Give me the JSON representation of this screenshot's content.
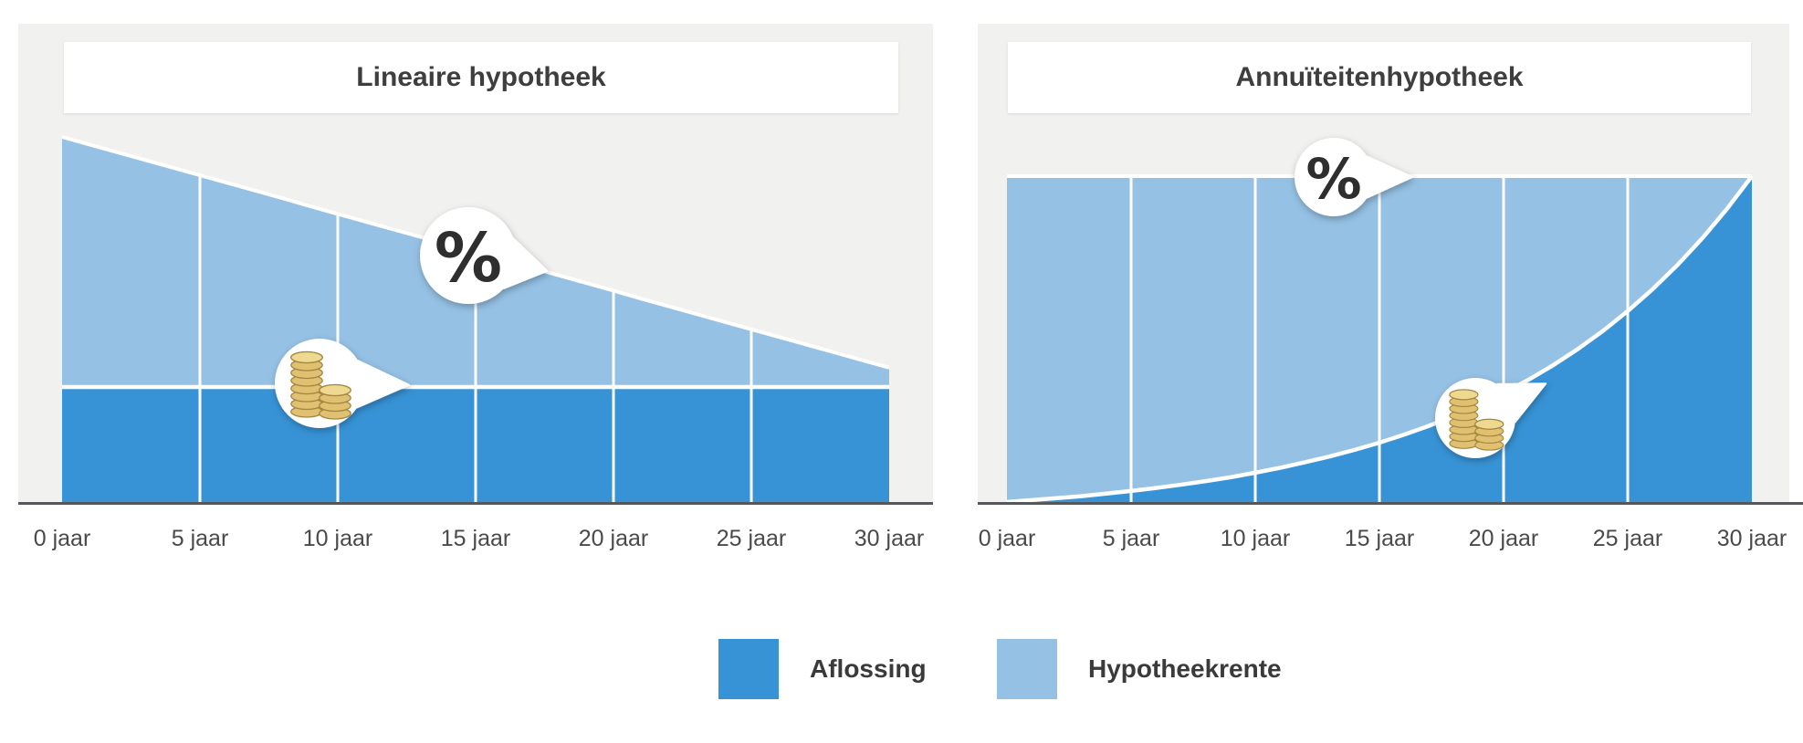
{
  "colors": {
    "aflossing": "#3793d6",
    "hypotheekrente": "#95c1e4",
    "panel_background": "#f1f1f0",
    "axis_line": "#55575a",
    "bubble_fill": "#ffffff",
    "coin_gold": "#dfc171"
  },
  "chart_data": [
    {
      "type": "area",
      "stacked": true,
      "title": "Lineaire hypotheek",
      "xlabel": "",
      "ylabel": "",
      "x": [
        0,
        1,
        2,
        3,
        4,
        5,
        6,
        7,
        8,
        9,
        10,
        11,
        12,
        13,
        14,
        15,
        16,
        17,
        18,
        19,
        20,
        21,
        22,
        23,
        24,
        25,
        26,
        27,
        28,
        29,
        30
      ],
      "tick_labels": [
        "0 jaar",
        "5 jaar",
        "10 jaar",
        "15 jaar",
        "20 jaar",
        "25 jaar",
        "30 jaar"
      ],
      "ylim": [
        0,
        100
      ],
      "grid": "vertical-white-lines",
      "legend_position": "bottom",
      "series": [
        {
          "name": "Aflossing",
          "color": "#3793d6",
          "values": [
            31.5,
            31.5,
            31.5,
            31.5,
            31.5,
            31.5,
            31.5,
            31.5,
            31.5,
            31.5,
            31.5,
            31.5,
            31.5,
            31.5,
            31.5,
            31.5,
            31.5,
            31.5,
            31.5,
            31.5,
            31.5,
            31.5,
            31.5,
            31.5,
            31.5,
            31.5,
            31.5,
            31.5,
            31.5,
            31.5,
            31.5
          ]
        },
        {
          "name": "Hypotheekrente",
          "color": "#95c1e4",
          "values": [
            68.5,
            66.4,
            64.3,
            62.2,
            60.1,
            58.0,
            55.9,
            53.8,
            51.7,
            49.5,
            47.4,
            45.3,
            43.2,
            41.1,
            39.0,
            36.9,
            34.8,
            32.7,
            30.6,
            28.5,
            26.4,
            24.2,
            22.1,
            20.0,
            17.9,
            15.8,
            13.7,
            11.6,
            9.5,
            7.4,
            5.3
          ]
        }
      ],
      "annotations": [
        {
          "icon": "percent-icon",
          "text": "%",
          "anchor": "hypotheekrente-top-line",
          "year": 17.5
        },
        {
          "icon": "coins-icon",
          "anchor": "aflossing-top-line",
          "year": 9.3
        }
      ]
    },
    {
      "type": "area",
      "stacked": true,
      "title": "Annuïteitenhypotheek",
      "xlabel": "",
      "ylabel": "",
      "x": [
        0,
        1,
        2,
        3,
        4,
        5,
        6,
        7,
        8,
        9,
        10,
        11,
        12,
        13,
        14,
        15,
        16,
        17,
        18,
        19,
        20,
        21,
        22,
        23,
        24,
        25,
        26,
        27,
        28,
        29,
        30
      ],
      "tick_labels": [
        "0 jaar",
        "5 jaar",
        "10 jaar",
        "15 jaar",
        "20 jaar",
        "25 jaar",
        "30 jaar"
      ],
      "ylim": [
        0,
        100
      ],
      "grid": "vertical-white-lines",
      "legend_position": "bottom",
      "series": [
        {
          "name": "Aflossing",
          "color": "#3793d6",
          "values": [
            0,
            0.6,
            1.2,
            1.8,
            2.6,
            3.4,
            4.3,
            5.3,
            6.4,
            7.6,
            9.0,
            10.5,
            12.2,
            14.0,
            16.0,
            18.2,
            20.7,
            23.4,
            26.5,
            29.8,
            33.5,
            37.5,
            42.0,
            47.0,
            52.5,
            58.6,
            65.3,
            72.7,
            80.9,
            90.0,
            100
          ]
        },
        {
          "name": "Hypotheekrente",
          "color": "#95c1e4",
          "values": [
            100,
            99.4,
            98.8,
            98.2,
            97.4,
            96.6,
            95.7,
            94.7,
            93.6,
            92.4,
            91.0,
            89.5,
            87.8,
            86.0,
            84.0,
            81.8,
            79.3,
            76.6,
            73.5,
            70.2,
            66.5,
            62.5,
            58.0,
            53.0,
            47.5,
            41.4,
            34.7,
            27.3,
            19.1,
            10.0,
            0
          ]
        }
      ],
      "annotations": [
        {
          "icon": "percent-icon",
          "text": "%",
          "anchor": "total-top-line",
          "year": 16.3
        },
        {
          "icon": "coins-icon",
          "anchor": "aflossing-curve",
          "year": 19
        }
      ]
    }
  ],
  "legend": {
    "items": [
      {
        "label": "Aflossing",
        "color": "#3793d6"
      },
      {
        "label": "Hypotheekrente",
        "color": "#95c1e4"
      }
    ]
  }
}
